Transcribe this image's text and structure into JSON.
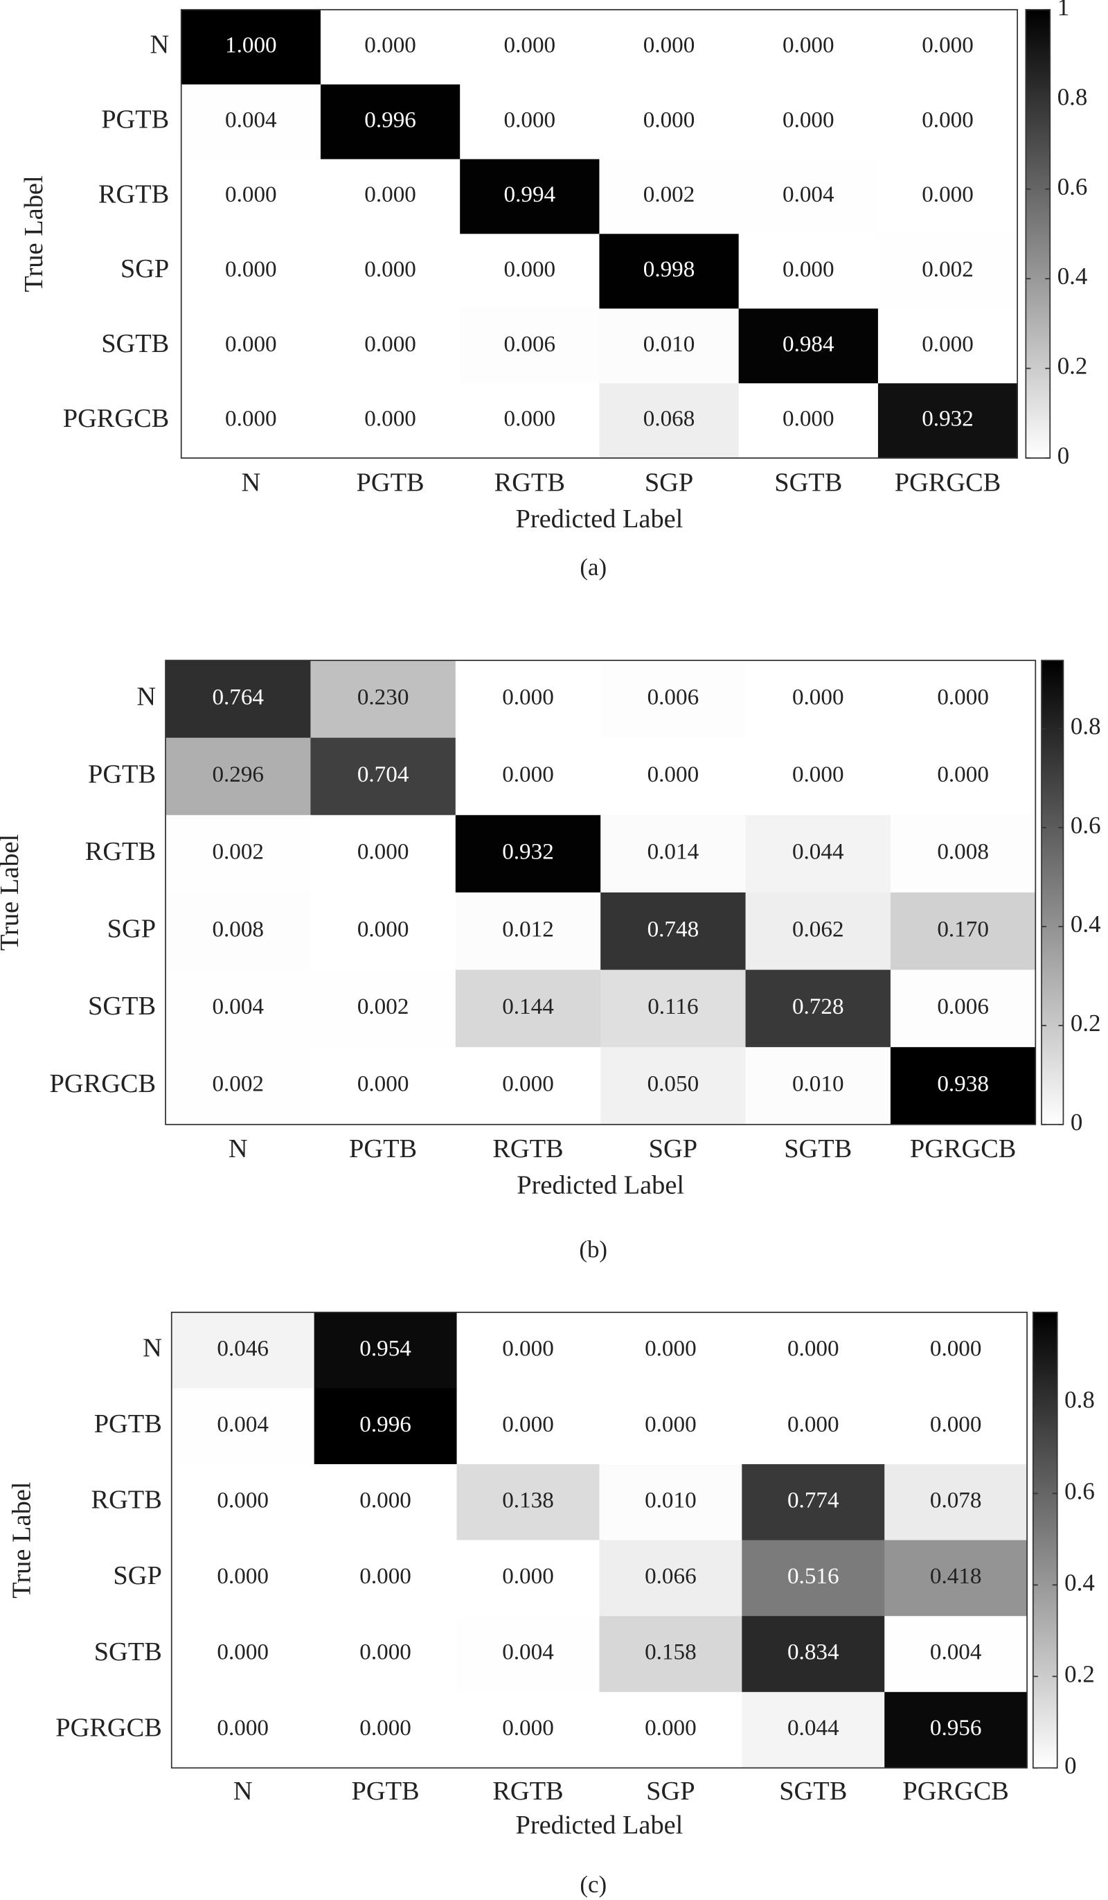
{
  "chart_data": [
    {
      "type": "heatmap",
      "x_label": "Predicted Label",
      "y_label": "True Label",
      "caption": "(a)",
      "x_categories": [
        "N",
        "PGTB",
        "RGTB",
        "SGP",
        "SGTB",
        "PGRGCB"
      ],
      "y_categories": [
        "N",
        "PGTB",
        "RGTB",
        "SGP",
        "SGTB",
        "PGRGCB"
      ],
      "values": [
        [
          1.0,
          0.0,
          0.0,
          0.0,
          0.0,
          0.0
        ],
        [
          0.004,
          0.996,
          0.0,
          0.0,
          0.0,
          0.0
        ],
        [
          0.0,
          0.0,
          0.994,
          0.002,
          0.004,
          0.0
        ],
        [
          0.0,
          0.0,
          0.0,
          0.998,
          0.0,
          0.002
        ],
        [
          0.0,
          0.0,
          0.006,
          0.01,
          0.984,
          0.0
        ],
        [
          0.0,
          0.0,
          0.0,
          0.068,
          0.0,
          0.932
        ]
      ],
      "value_labels": [
        [
          "1.000",
          "0.000",
          "0.000",
          "0.000",
          "0.000",
          "0.000"
        ],
        [
          "0.004",
          "0.996",
          "0.000",
          "0.000",
          "0.000",
          "0.000"
        ],
        [
          "0.000",
          "0.000",
          "0.994",
          "0.002",
          "0.004",
          "0.000"
        ],
        [
          "0.000",
          "0.000",
          "0.000",
          "0.998",
          "0.000",
          "0.002"
        ],
        [
          "0.000",
          "0.000",
          "0.006",
          "0.010",
          "0.984",
          "0.000"
        ],
        [
          "0.000",
          "0.000",
          "0.000",
          "0.068",
          "0.000",
          "0.932"
        ]
      ],
      "zlim": [
        0,
        1
      ],
      "zticks": [
        0,
        0.2,
        0.4,
        0.6,
        0.8,
        1
      ],
      "colors": [
        "#ffffff",
        "#000000"
      ]
    },
    {
      "type": "heatmap",
      "x_label": "Predicted Label",
      "y_label": "True Label",
      "caption": "(b)",
      "x_categories": [
        "N",
        "PGTB",
        "RGTB",
        "SGP",
        "SGTB",
        "PGRGCB"
      ],
      "y_categories": [
        "N",
        "PGTB",
        "RGTB",
        "SGP",
        "SGTB",
        "PGRGCB"
      ],
      "values": [
        [
          0.764,
          0.23,
          0.0,
          0.006,
          0.0,
          0.0
        ],
        [
          0.296,
          0.704,
          0.0,
          0.0,
          0.0,
          0.0
        ],
        [
          0.002,
          0.0,
          0.932,
          0.014,
          0.044,
          0.008
        ],
        [
          0.008,
          0.0,
          0.012,
          0.748,
          0.062,
          0.17
        ],
        [
          0.004,
          0.002,
          0.144,
          0.116,
          0.728,
          0.006
        ],
        [
          0.002,
          0.0,
          0.0,
          0.05,
          0.01,
          0.938
        ]
      ],
      "value_labels": [
        [
          "0.764",
          "0.230",
          "0.000",
          "0.006",
          "0.000",
          "0.000"
        ],
        [
          "0.296",
          "0.704",
          "0.000",
          "0.000",
          "0.000",
          "0.000"
        ],
        [
          "0.002",
          "0.000",
          "0.932",
          "0.014",
          "0.044",
          "0.008"
        ],
        [
          "0.008",
          "0.000",
          "0.012",
          "0.748",
          "0.062",
          "0.170"
        ],
        [
          "0.004",
          "0.002",
          "0.144",
          "0.116",
          "0.728",
          "0.006"
        ],
        [
          "0.002",
          "0.000",
          "0.000",
          "0.050",
          "0.010",
          "0.938"
        ]
      ],
      "zlim": [
        0,
        0.938
      ],
      "zticks": [
        0,
        0.2,
        0.4,
        0.6,
        0.8
      ],
      "colors": [
        "#ffffff",
        "#000000"
      ]
    },
    {
      "type": "heatmap",
      "x_label": "Predicted Label",
      "y_label": "True Label",
      "caption": "(c)",
      "x_categories": [
        "N",
        "PGTB",
        "RGTB",
        "SGP",
        "SGTB",
        "PGRGCB"
      ],
      "y_categories": [
        "N",
        "PGTB",
        "RGTB",
        "SGP",
        "SGTB",
        "PGRGCB"
      ],
      "values": [
        [
          0.046,
          0.954,
          0.0,
          0.0,
          0.0,
          0.0
        ],
        [
          0.004,
          0.996,
          0.0,
          0.0,
          0.0,
          0.0
        ],
        [
          0.0,
          0.0,
          0.138,
          0.01,
          0.774,
          0.078
        ],
        [
          0.0,
          0.0,
          0.0,
          0.066,
          0.516,
          0.418
        ],
        [
          0.0,
          0.0,
          0.004,
          0.158,
          0.834,
          0.004
        ],
        [
          0.0,
          0.0,
          0.0,
          0.0,
          0.044,
          0.956
        ]
      ],
      "value_labels": [
        [
          "0.046",
          "0.954",
          "0.000",
          "0.000",
          "0.000",
          "0.000"
        ],
        [
          "0.004",
          "0.996",
          "0.000",
          "0.000",
          "0.000",
          "0.000"
        ],
        [
          "0.000",
          "0.000",
          "0.138",
          "0.010",
          "0.774",
          "0.078"
        ],
        [
          "0.000",
          "0.000",
          "0.000",
          "0.066",
          "0.516",
          "0.418"
        ],
        [
          "0.000",
          "0.000",
          "0.004",
          "0.158",
          "0.834",
          "0.004"
        ],
        [
          "0.000",
          "0.000",
          "0.000",
          "0.000",
          "0.044",
          "0.956"
        ]
      ],
      "zlim": [
        0,
        0.996
      ],
      "zticks": [
        0,
        0.2,
        0.4,
        0.6,
        0.8
      ],
      "colors": [
        "#ffffff",
        "#000000"
      ]
    }
  ]
}
